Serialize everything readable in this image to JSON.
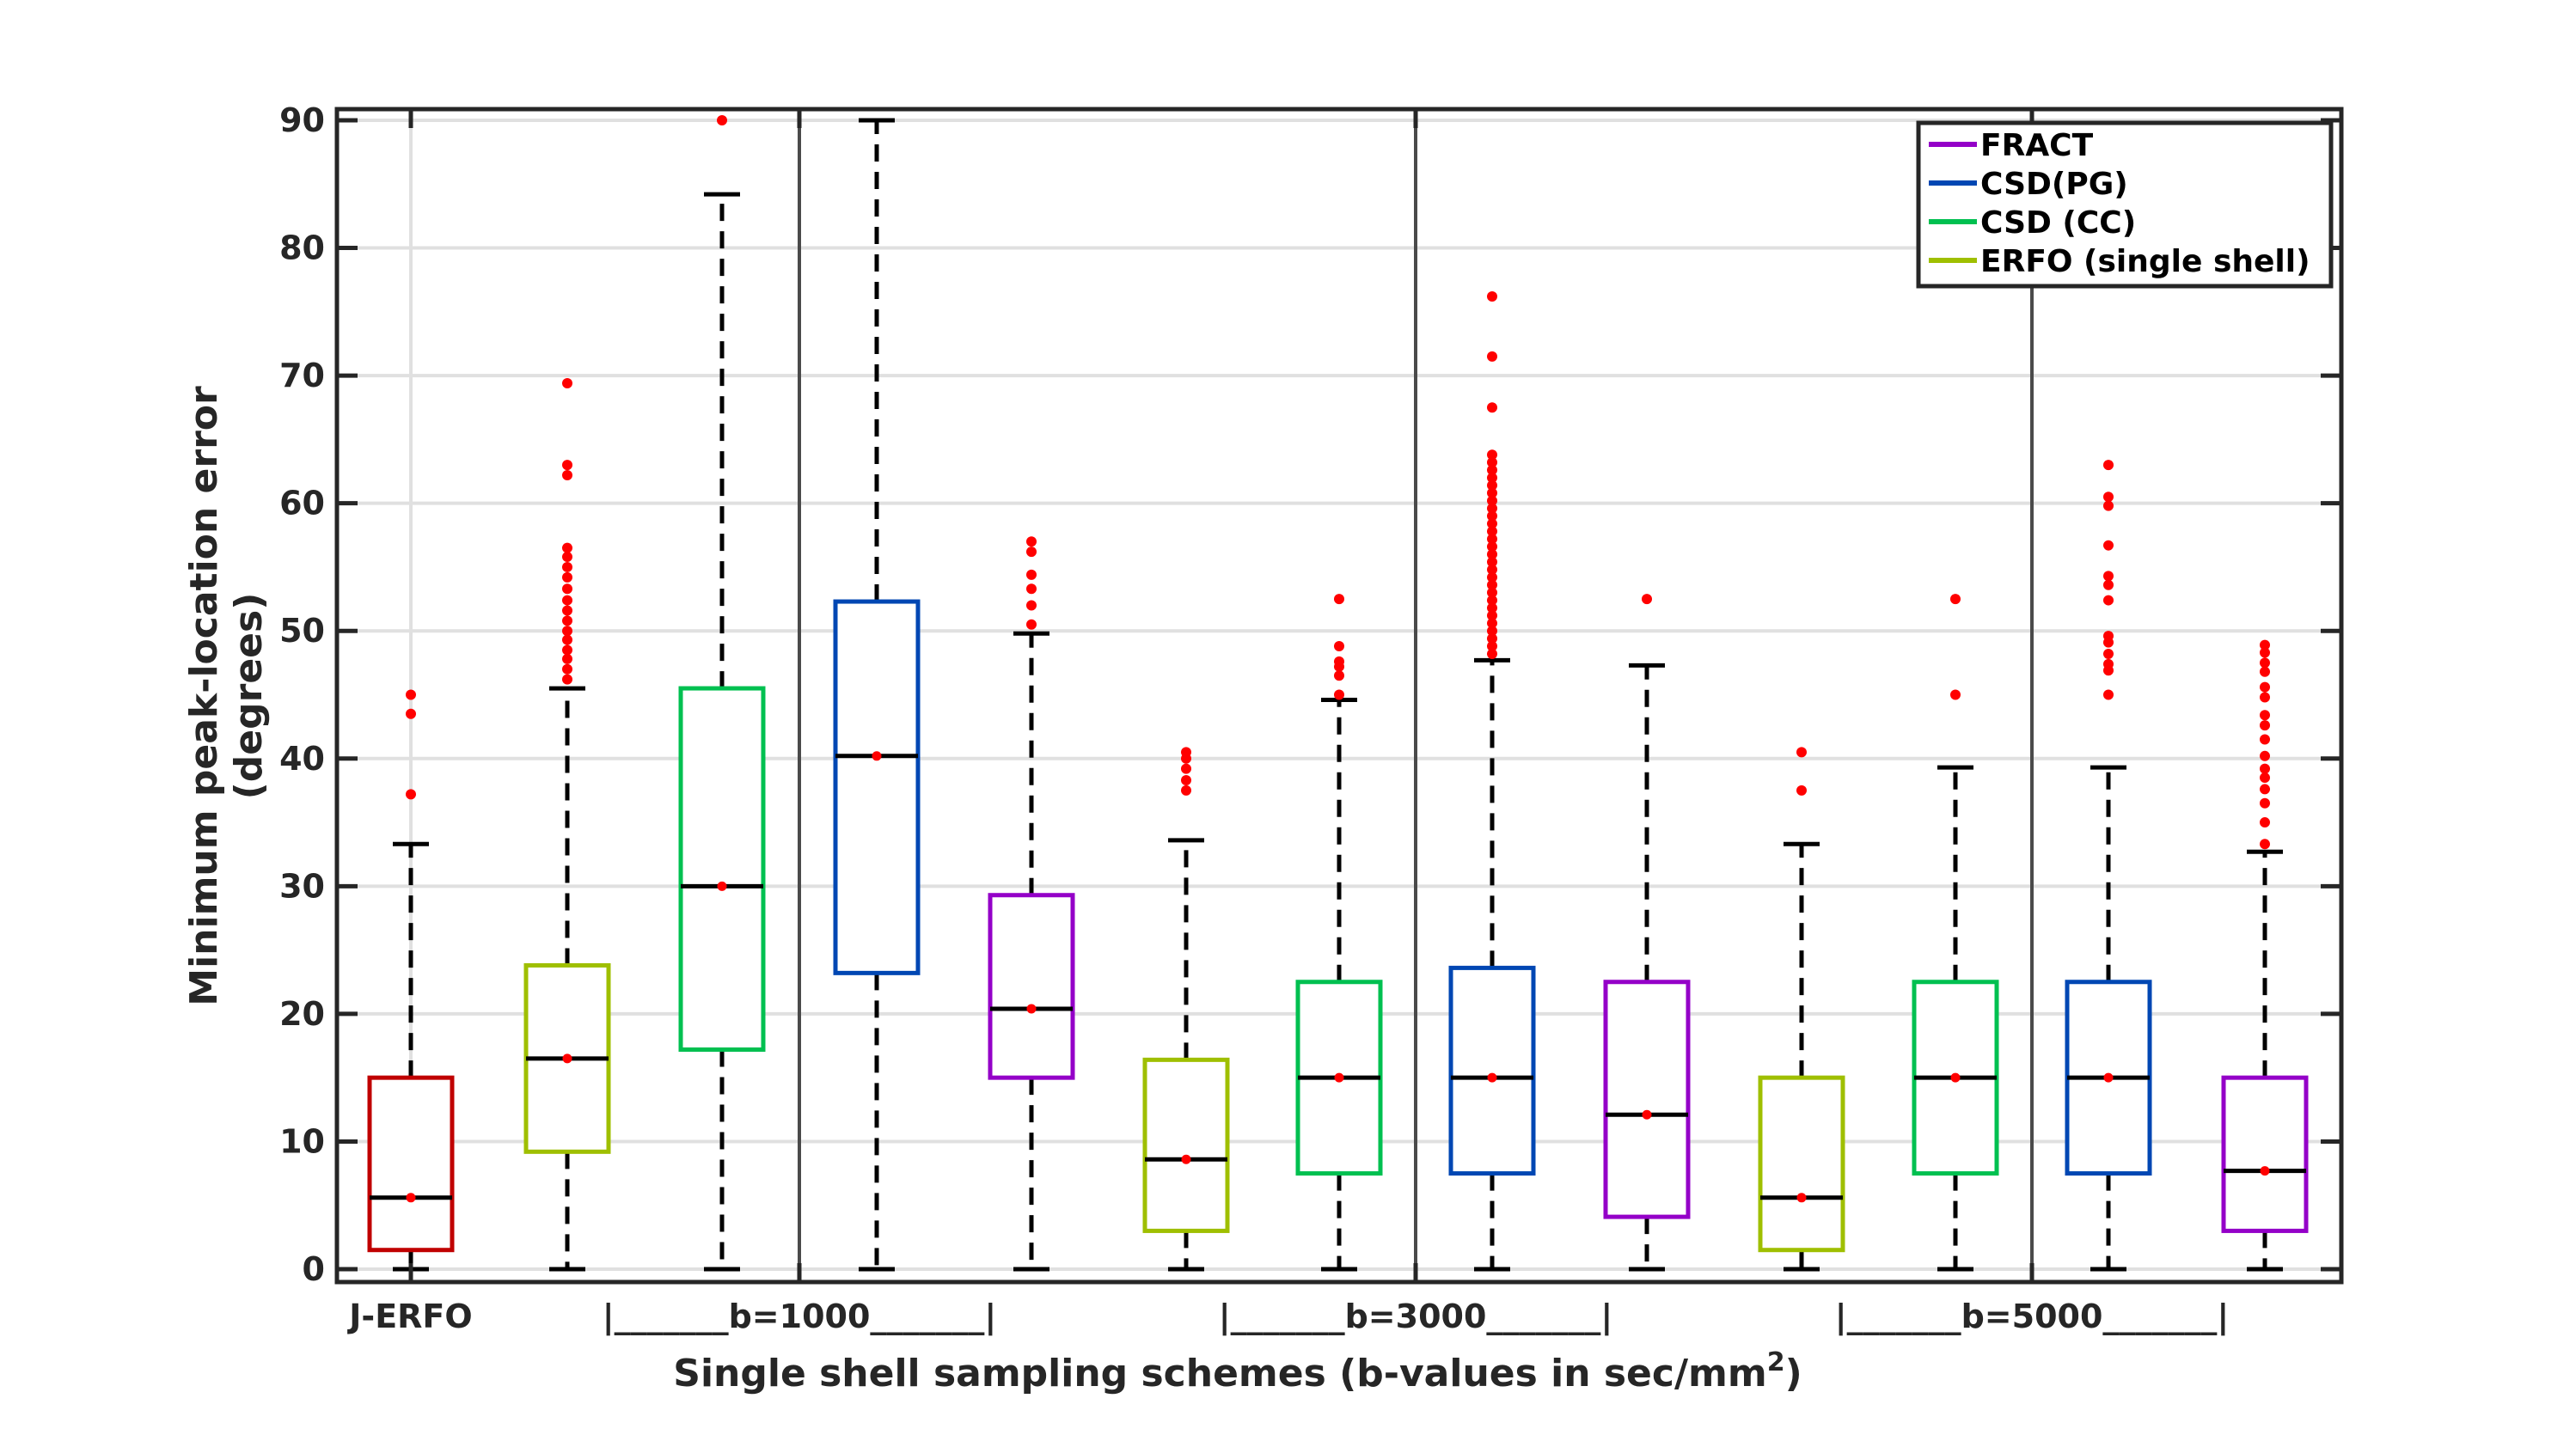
{
  "chart_data": {
    "type": "box",
    "title": "",
    "xlabel": "Single shell sampling schemes (b-values in sec/mm",
    "xlabel_superscript": "2",
    "xlabel_close": ")",
    "ylabel_line1": "Minimum peak-location error",
    "ylabel_line2": "(degrees)",
    "ylim": [
      0,
      90
    ],
    "yticks": [
      0,
      10,
      20,
      30,
      40,
      50,
      60,
      70,
      80,
      90
    ],
    "grid": true,
    "legend_position": "top-right",
    "legend": [
      {
        "label": "FRACT",
        "color": "#9400c8"
      },
      {
        "label": "CSD(PG)",
        "color": "#0047b3"
      },
      {
        "label": "CSD (CC)",
        "color": "#00c050"
      },
      {
        "label": "ERFO (single shell)",
        "color": "#9fbf00"
      }
    ],
    "x_groups": [
      {
        "label": "J-ERFO"
      },
      {
        "label": "|_______b=1000_______|"
      },
      {
        "label": "|_______b=3000_______|"
      },
      {
        "label": "|_______b=5000_______|"
      }
    ],
    "boxes": [
      {
        "method": "J-ERFO",
        "b": "",
        "color": "#c00000",
        "whisker_low": 0,
        "q1": 1.5,
        "median": 5.6,
        "q3": 15,
        "whisker_high": 33.3,
        "outliers": [
          37.2,
          43.5,
          45
        ]
      },
      {
        "method": "ERFO (single shell)",
        "b": "1000",
        "color": "#9fbf00",
        "whisker_low": 0,
        "q1": 9.2,
        "median": 16.5,
        "q3": 23.8,
        "whisker_high": 45.5,
        "outliers": [
          46.2,
          47,
          47.8,
          48.5,
          49.3,
          50,
          50.8,
          51.6,
          52.4,
          53.3,
          54.2,
          55,
          55.8,
          56.5,
          62.2,
          63,
          69.4
        ]
      },
      {
        "method": "CSD (CC)",
        "b": "1000",
        "color": "#00c050",
        "whisker_low": 0,
        "q1": 17.2,
        "median": 30,
        "q3": 45.5,
        "whisker_high": 84.2,
        "outliers": [
          90
        ]
      },
      {
        "method": "CSD(PG)",
        "b": "1000",
        "color": "#0047b3",
        "whisker_low": 0,
        "q1": 23.2,
        "median": 40.2,
        "q3": 52.3,
        "whisker_high": 90,
        "outliers": []
      },
      {
        "method": "FRACT",
        "b": "1000",
        "color": "#9400c8",
        "whisker_low": 0,
        "q1": 15,
        "median": 20.4,
        "q3": 29.3,
        "whisker_high": 49.8,
        "outliers": [
          50.5,
          52,
          53.3,
          54.4,
          56.2,
          57
        ]
      },
      {
        "method": "ERFO (single shell)",
        "b": "3000",
        "color": "#9fbf00",
        "whisker_low": 0,
        "q1": 3,
        "median": 8.6,
        "q3": 16.4,
        "whisker_high": 33.6,
        "outliers": [
          37.5,
          38.3,
          39.2,
          40,
          40.5
        ]
      },
      {
        "method": "CSD (CC)",
        "b": "3000",
        "color": "#00c050",
        "whisker_low": 0,
        "q1": 7.5,
        "median": 15,
        "q3": 22.5,
        "whisker_high": 44.6,
        "outliers": [
          45,
          46.5,
          47.2,
          47.6,
          48.8,
          52.5
        ]
      },
      {
        "method": "CSD(PG)",
        "b": "3000",
        "color": "#0047b3",
        "whisker_low": 0,
        "q1": 7.5,
        "median": 15,
        "q3": 23.6,
        "whisker_high": 47.7,
        "outliers": [
          48.2,
          48.8,
          49.4,
          50,
          50.6,
          51.2,
          51.8,
          52.4,
          53,
          53.6,
          54.2,
          54.8,
          55.4,
          56,
          56.6,
          57.2,
          57.8,
          58.4,
          59,
          59.6,
          60.2,
          60.8,
          61.4,
          62,
          62.6,
          63.2,
          63.8,
          67.5,
          71.5,
          76.2
        ]
      },
      {
        "method": "FRACT",
        "b": "3000",
        "color": "#9400c8",
        "whisker_low": 0,
        "q1": 4.1,
        "median": 12.1,
        "q3": 22.5,
        "whisker_high": 47.3,
        "outliers": [
          52.5
        ]
      },
      {
        "method": "ERFO (single shell)",
        "b": "5000",
        "color": "#9fbf00",
        "whisker_low": 0,
        "q1": 1.5,
        "median": 5.6,
        "q3": 15,
        "whisker_high": 33.3,
        "outliers": [
          37.5,
          40.5
        ]
      },
      {
        "method": "CSD (CC)",
        "b": "5000",
        "color": "#00c050",
        "whisker_low": 0,
        "q1": 7.5,
        "median": 15,
        "q3": 22.5,
        "whisker_high": 39.3,
        "outliers": [
          45,
          52.5
        ]
      },
      {
        "method": "CSD(PG)",
        "b": "5000",
        "color": "#0047b3",
        "whisker_low": 0,
        "q1": 7.5,
        "median": 15,
        "q3": 22.5,
        "whisker_high": 39.3,
        "outliers": [
          45,
          46.9,
          47.4,
          48.2,
          49.1,
          49.6,
          52.4,
          53.6,
          54.3,
          56.7,
          59.8,
          60.5,
          63
        ]
      },
      {
        "method": "FRACT",
        "b": "5000",
        "color": "#9400c8",
        "whisker_low": 0,
        "q1": 3,
        "median": 7.7,
        "q3": 15,
        "whisker_high": 32.7,
        "outliers": [
          33.3,
          35,
          36.5,
          37.6,
          38.5,
          39.2,
          40.2,
          41.5,
          42.6,
          43.4,
          44.8,
          45.6,
          46.8,
          47.5,
          48.3,
          48.9
        ]
      }
    ]
  },
  "colors": {
    "median": "#000000",
    "median_marker": "#ff0000",
    "outlier": "#ff0000",
    "axes": "#262626",
    "grid": "#e0e0e0"
  }
}
